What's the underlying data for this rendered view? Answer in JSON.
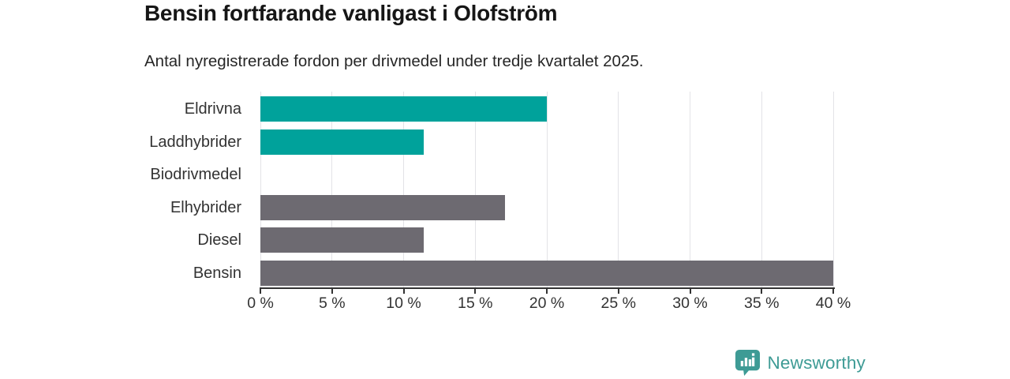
{
  "header": {
    "title": "Bensin fortfarande vanligast i Olofström",
    "subtitle": "Antal nyregistrerade fordon per drivmedel under tredje kvartalet 2025."
  },
  "chart_data": {
    "type": "bar",
    "orientation": "horizontal",
    "title": "Bensin fortfarande vanligast i Olofström",
    "subtitle": "Antal nyregistrerade fordon per drivmedel under tredje kvartalet 2025.",
    "categories": [
      "Eldrivna",
      "Laddhybrider",
      "Biodrivmedel",
      "Elhybrider",
      "Diesel",
      "Bensin"
    ],
    "values": [
      20,
      11.4,
      0,
      17.1,
      11.4,
      40
    ],
    "bar_colors": [
      "#00a29b",
      "#00a29b",
      "#00a29b",
      "#6d6a71",
      "#6d6a71",
      "#6d6a71"
    ],
    "xlim": [
      0,
      40
    ],
    "x_ticks": [
      0,
      5,
      10,
      15,
      20,
      25,
      30,
      35,
      40
    ],
    "x_tick_labels": [
      "0 %",
      "5 %",
      "10 %",
      "15 %",
      "20 %",
      "25 %",
      "30 %",
      "35 %",
      "40 %"
    ],
    "xlabel": "",
    "ylabel": "",
    "grid": "vertical",
    "legend": "none"
  },
  "branding": {
    "logo_text": "Newsworthy",
    "logo_icon": "bar-chart-badge-icon",
    "logo_color": "#3e9b95"
  },
  "colors": {
    "teal": "#00a29b",
    "gray": "#6d6a71",
    "gridline": "#e3e3e7",
    "axis": "#333333",
    "title_text": "#161616",
    "body_text": "#333333"
  }
}
